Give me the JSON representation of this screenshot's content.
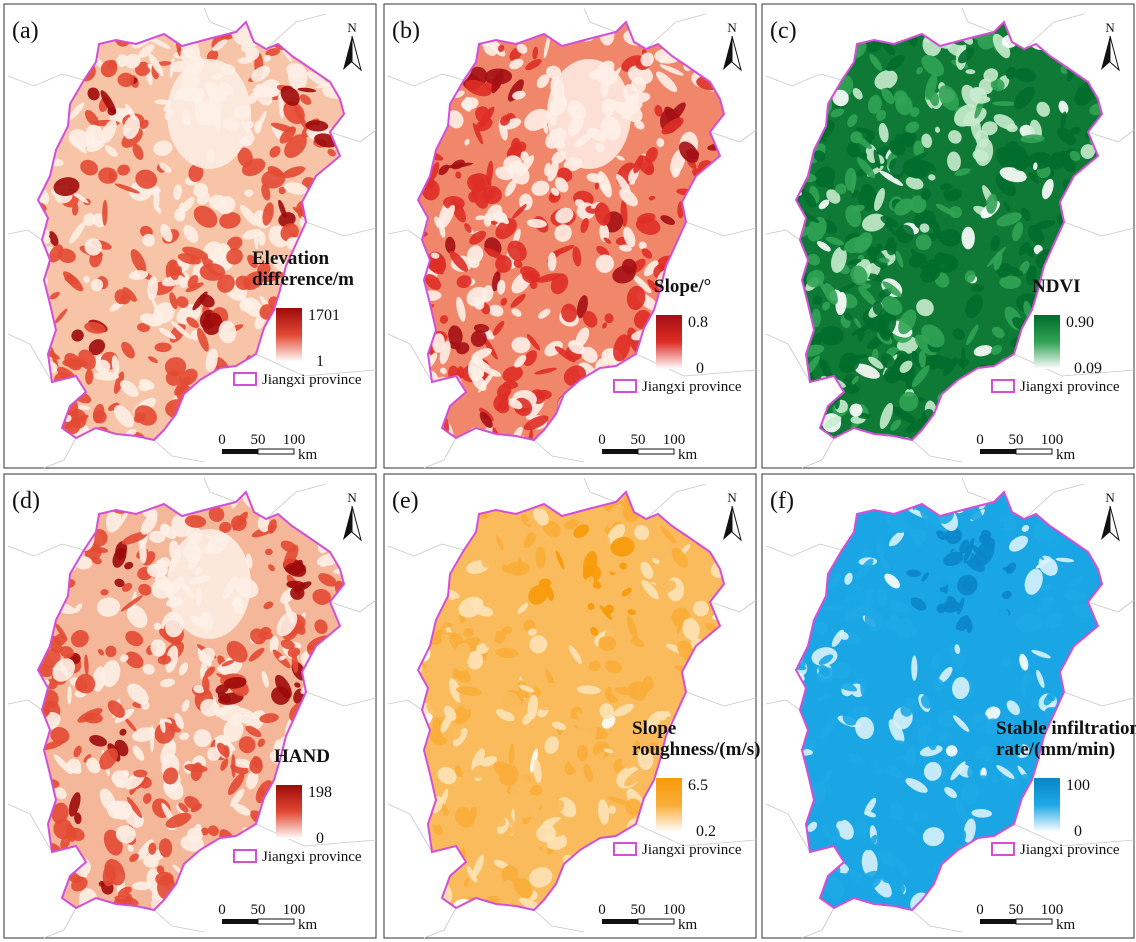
{
  "figure": {
    "legend_boundary_label": "Jiangxi province",
    "scale_bar": {
      "ticks": [
        "0",
        "50",
        "100"
      ],
      "unit": "km"
    },
    "north_arrow_label": "N"
  },
  "panels": [
    {
      "id": "a",
      "label": "(a)",
      "title_lines": [
        "Elevation",
        "difference/m"
      ],
      "max_label": "1701",
      "min_label": "1",
      "style": "hotspot",
      "colors": {
        "high": "#9e0a0a",
        "mid": "#e34a33",
        "low": "#fdf0e6",
        "fill": "#f7c4a8"
      }
    },
    {
      "id": "b",
      "label": "(b)",
      "title_lines": [
        "Slope/°"
      ],
      "max_label": "0.8",
      "min_label": "0",
      "style": "hotspot",
      "colors": {
        "high": "#a50f15",
        "mid": "#de2d26",
        "low": "#fef0e8",
        "fill": "#f1876a"
      }
    },
    {
      "id": "c",
      "label": "(c)",
      "title_lines": [
        "NDVI"
      ],
      "max_label": "0.90",
      "min_label": "0.09",
      "style": "inverse",
      "colors": {
        "high": "#006d2c",
        "mid": "#31a354",
        "low": "#c7ebcd",
        "fill": "#0e7a36"
      }
    },
    {
      "id": "d",
      "label": "(d)",
      "title_lines": [
        "HAND"
      ],
      "max_label": "198",
      "min_label": "0",
      "style": "hotspot",
      "colors": {
        "high": "#9e0a0a",
        "mid": "#e34a33",
        "low": "#fdf0e6",
        "fill": "#f5b79a"
      }
    },
    {
      "id": "e",
      "label": "(e)",
      "title_lines": [
        "Slope",
        "roughness/(m/s)"
      ],
      "max_label": "6.5",
      "min_label": "0.2",
      "style": "flat",
      "colors": {
        "high": "#f79a08",
        "mid": "#f9ad38",
        "low": "#fde3b6",
        "fill": "#f9bb5c"
      }
    },
    {
      "id": "f",
      "label": "(f)",
      "title_lines": [
        "Stable infiltration",
        "rate/(mm/min)"
      ],
      "max_label": "100",
      "min_label": "0",
      "style": "flat",
      "colors": {
        "high": "#0a86c8",
        "mid": "#1ea8e6",
        "low": "#d8f2fc",
        "fill": "#1aa6e4"
      }
    }
  ]
}
